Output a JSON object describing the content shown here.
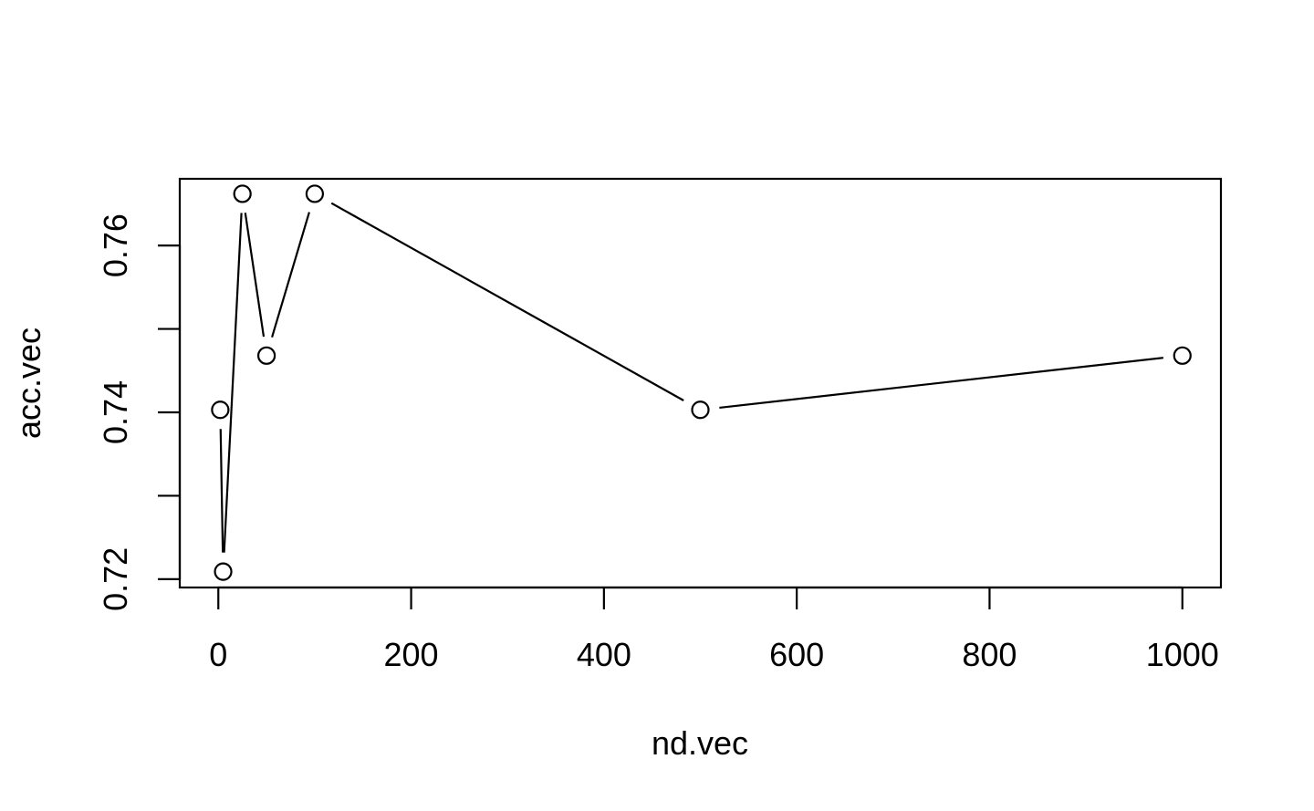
{
  "chart_data": {
    "type": "line",
    "title": "",
    "xlabel": "nd.vec",
    "ylabel": "acc.vec",
    "x": [
      2,
      5,
      25,
      50,
      100,
      500,
      1000
    ],
    "series": [
      {
        "values": [
          0.7403,
          0.7209,
          0.7662,
          0.7468,
          0.7662,
          0.7403,
          0.7468
        ]
      }
    ],
    "xlim": [
      -40,
      1040
    ],
    "ylim": [
      0.719,
      0.768
    ],
    "x_ticks": [
      {
        "value": 0,
        "label": "0"
      },
      {
        "value": 200,
        "label": "200"
      },
      {
        "value": 400,
        "label": "400"
      },
      {
        "value": 600,
        "label": "600"
      },
      {
        "value": 800,
        "label": "800"
      },
      {
        "value": 1000,
        "label": "1000"
      }
    ],
    "y_ticks": [
      {
        "value": 0.72,
        "label": "0.72"
      },
      {
        "value": 0.73,
        "label": ""
      },
      {
        "value": 0.74,
        "label": "0.74"
      },
      {
        "value": 0.75,
        "label": ""
      },
      {
        "value": 0.76,
        "label": "0.76"
      }
    ],
    "marker": "open-circle",
    "grid": false,
    "legend": "none"
  }
}
